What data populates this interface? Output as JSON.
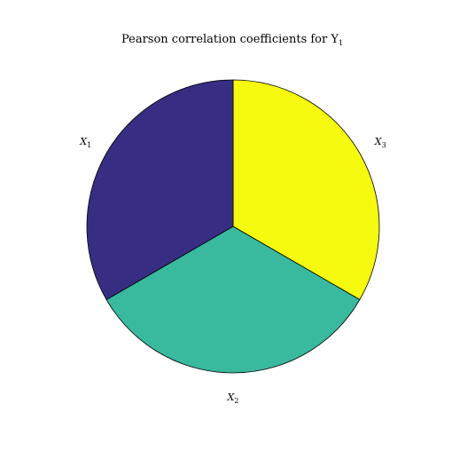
{
  "chart_data": {
    "type": "pie",
    "title": "Pearson correlation coefficients for Y",
    "title_subscript": "1",
    "slices": [
      {
        "label": "X",
        "subscript": "3",
        "value": 0.3333,
        "color": "#f5fa0f"
      },
      {
        "label": "X",
        "subscript": "2",
        "value": 0.3333,
        "color": "#39b99e"
      },
      {
        "label": "X",
        "subscript": "1",
        "value": 0.3333,
        "color": "#372e84"
      }
    ],
    "start_angle_deg": 90,
    "direction": "clockwise",
    "legend": "none"
  }
}
